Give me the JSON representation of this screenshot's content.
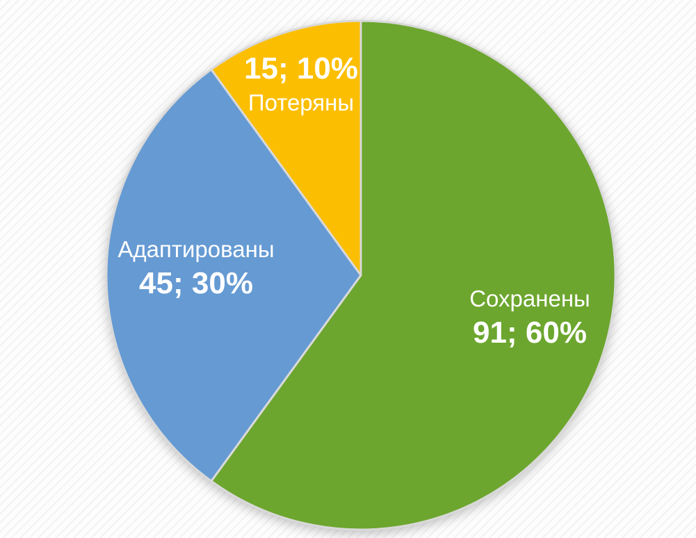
{
  "page": {
    "background_color": "#fdfdfd",
    "background_texture": "diagonal-stripes",
    "stripe_color": "#f2f2f2"
  },
  "chart_data": {
    "type": "pie",
    "title": "",
    "legend": "none",
    "start_angle_deg": 0,
    "direction": "clockwise",
    "total": 151,
    "data_label_format": "value; percent%",
    "label_text_color": "#ffffff",
    "separator_color": "#d9d9d9",
    "slices": [
      {
        "label": "Сохранены",
        "value": 91,
        "percent": 60,
        "value_text": "91; 60%",
        "color": "#6CA62E"
      },
      {
        "label": "Адаптированы",
        "value": 45,
        "percent": 30,
        "value_text": "45; 30%",
        "color": "#659AD3"
      },
      {
        "label": "Потеряны",
        "value": 15,
        "percent": 10,
        "value_text": "15; 10%",
        "color": "#FCBE00"
      }
    ]
  }
}
